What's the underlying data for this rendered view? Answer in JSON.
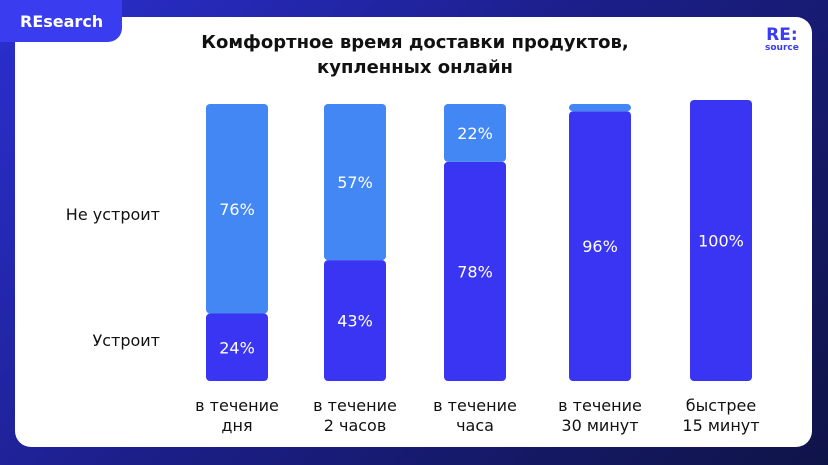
{
  "header": {
    "tab": "REsearch",
    "logo": "RE:",
    "logo_sub": "source"
  },
  "chart_data": {
    "type": "bar",
    "stacked": true,
    "percent": true,
    "title": "Комфортное время доставки продуктов, купленных онлайн",
    "categories": [
      [
        "в течение",
        "дня"
      ],
      [
        "в течение",
        "2 часов"
      ],
      [
        "в течение",
        "часа"
      ],
      [
        "в течение",
        "30 минут"
      ],
      [
        "быстрее",
        "15 минут"
      ]
    ],
    "series": [
      {
        "name": "Устроит",
        "values": [
          24,
          43,
          78,
          96,
          100
        ],
        "color": "#3a35f2"
      },
      {
        "name": "Не устроит",
        "values": [
          76,
          57,
          22,
          4,
          0
        ],
        "color": "#4287f3"
      }
    ],
    "legend": "left",
    "ylim": [
      0,
      100
    ],
    "grid": false
  }
}
